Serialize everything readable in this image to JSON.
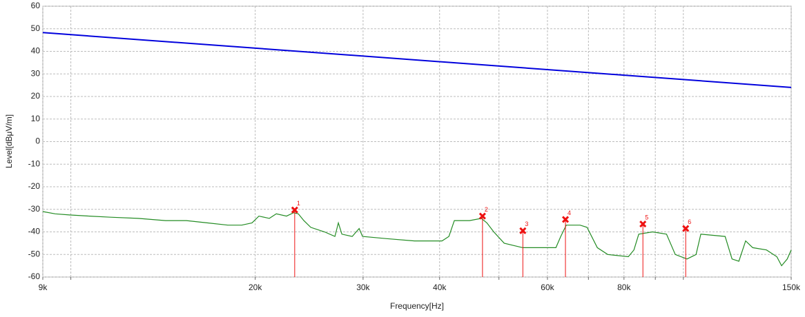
{
  "chart_data": {
    "type": "line",
    "xlabel": "Frequency[Hz]",
    "ylabel": "Level[dBμV/m]",
    "xscale": "log",
    "grid": true,
    "xlim": [
      9000,
      150000
    ],
    "ylim": [
      -60,
      60
    ],
    "xticks": [
      {
        "value": 9000,
        "label": "9k"
      },
      {
        "value": 20000,
        "label": "20k"
      },
      {
        "value": 30000,
        "label": "30k"
      },
      {
        "value": 40000,
        "label": "40k"
      },
      {
        "value": 60000,
        "label": "60k"
      },
      {
        "value": 80000,
        "label": "80k"
      },
      {
        "value": 150000,
        "label": "150k"
      }
    ],
    "minor_xticks": [
      10000,
      50000,
      70000,
      90000,
      100000
    ],
    "yticks": [
      -60,
      -50,
      -40,
      -30,
      -20,
      -10,
      0,
      10,
      20,
      30,
      40,
      50,
      60
    ],
    "series": [
      {
        "color": "#0000dd",
        "x": [
          9000,
          150000
        ],
        "values": [
          48.3,
          24
        ]
      },
      {
        "color": "#228b22",
        "x": [
          9000,
          9430,
          9940,
          10740,
          11610,
          12880,
          14280,
          15440,
          16690,
          18050,
          19010,
          19760,
          20280,
          21090,
          21650,
          22500,
          23100,
          23520,
          24010,
          24640,
          25950,
          26990,
          27340,
          27700,
          28800,
          29560,
          29940,
          32790,
          36390,
          40360,
          41420,
          42280,
          44770,
          46800,
          47780,
          49040,
          50990,
          54680,
          58050,
          61940,
          63070,
          64400,
          67820,
          69620,
          72380,
          75260,
          81320,
          83050,
          84560,
          89070,
          93870,
          97020,
          101400,
          104900,
          106800,
          117000,
          120100,
          123200,
          126400,
          129800,
          136700,
          142100,
          144700,
          147800,
          150000
        ],
        "values": [
          -31,
          -32,
          -32.5,
          -33,
          -33.5,
          -34,
          -35,
          -35,
          -36,
          -37,
          -37,
          -36,
          -33,
          -34,
          -32,
          -33,
          -31.5,
          -32,
          -35,
          -38,
          -40,
          -42,
          -36,
          -41,
          -42,
          -38.5,
          -42,
          -43,
          -44,
          -44,
          -42,
          -35,
          -35,
          -34,
          -36,
          -40,
          -45,
          -47,
          -47,
          -47,
          -42,
          -37,
          -37,
          -38,
          -47,
          -50,
          -51,
          -48,
          -41,
          -40,
          -41,
          -50,
          -52,
          -50,
          -41,
          -42,
          -52,
          -53,
          -44,
          -47,
          -48,
          -51,
          -55,
          -52,
          -48
        ]
      }
    ],
    "markers": {
      "color": "#ee1111",
      "labels": [
        "1",
        "2",
        "3",
        "4",
        "5",
        "6"
      ],
      "x": [
        23200,
        47000,
        54700,
        64200,
        85900,
        100900
      ],
      "values": [
        -30.3,
        -33,
        -39.5,
        -34.5,
        -36.5,
        -38.5
      ]
    }
  }
}
